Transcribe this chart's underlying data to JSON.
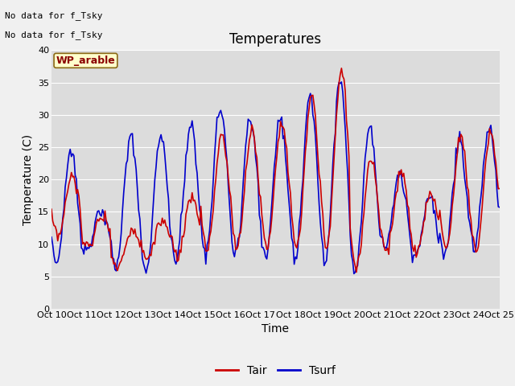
{
  "title": "Temperatures",
  "xlabel": "Time",
  "ylabel": "Temperature (C)",
  "xlim": [
    0,
    360
  ],
  "ylim": [
    0,
    40
  ],
  "xtick_positions": [
    0,
    24,
    48,
    72,
    96,
    120,
    144,
    168,
    192,
    216,
    240,
    264,
    288,
    312,
    336,
    360
  ],
  "xtick_labels": [
    "Oct 10",
    "Oct 11",
    "Oct 12",
    "Oct 13",
    "Oct 14",
    "Oct 15",
    "Oct 16",
    "Oct 17",
    "Oct 18",
    "Oct 19",
    "Oct 20",
    "Oct 21",
    "Oct 22",
    "Oct 23",
    "Oct 24",
    "Oct 25"
  ],
  "ytick_positions": [
    0,
    5,
    10,
    15,
    20,
    25,
    30,
    35,
    40
  ],
  "ytick_labels": [
    "0",
    "5",
    "10",
    "15",
    "20",
    "25",
    "30",
    "35",
    "40"
  ],
  "tair_color": "#cc0000",
  "tsurf_color": "#0000cc",
  "legend_tair": "Tair",
  "legend_tsurf": "Tsurf",
  "text_nodata1": "No data for f_Tsky",
  "text_nodata2": "No data for f_Tsky",
  "text_wp": "WP_arable",
  "background_color": "#dcdcdc",
  "grid_color": "#c8c8c8",
  "figure_facecolor": "#f0f0f0",
  "title_fontsize": 12,
  "axis_fontsize": 10,
  "tick_fontsize": 8,
  "legend_fontsize": 10,
  "linewidth": 1.2,
  "tair_daily_min": [
    11.0,
    9.5,
    6.5,
    8.0,
    8.0,
    9.0,
    9.5,
    9.5,
    9.0,
    9.5,
    6.5,
    9.0,
    8.5,
    9.5,
    9.0,
    10.0
  ],
  "tair_daily_max": [
    20.5,
    14.5,
    12.5,
    13.5,
    17.0,
    27.0,
    27.5,
    29.0,
    33.0,
    37.0,
    23.5,
    21.0,
    18.0,
    26.5,
    27.5,
    15.5
  ],
  "tsurf_daily_min": [
    7.0,
    9.0,
    6.0,
    5.5,
    7.5,
    8.5,
    8.5,
    8.0,
    8.0,
    7.5,
    6.0,
    9.5,
    8.0,
    8.0,
    9.5,
    9.5
  ],
  "tsurf_daily_max": [
    24.5,
    15.0,
    27.0,
    27.0,
    28.5,
    31.0,
    29.5,
    29.5,
    33.0,
    35.5,
    28.0,
    20.5,
    17.5,
    26.0,
    28.0,
    15.5
  ]
}
